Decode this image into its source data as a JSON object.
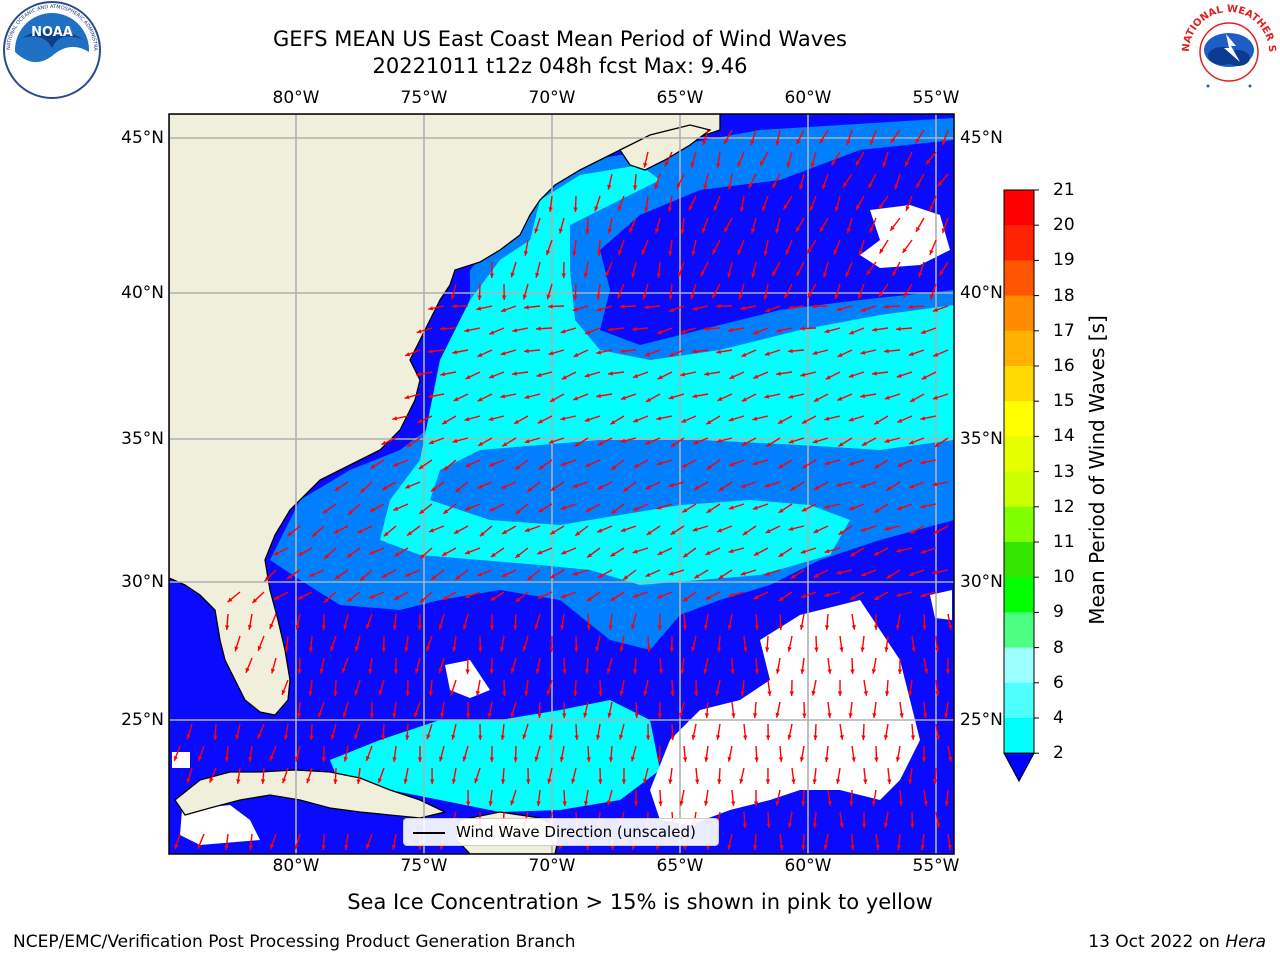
{
  "header": {
    "title_line1": "GEFS MEAN US East Coast Mean Period of Wind Waves",
    "title_line2": "20221011 t12z 048h fcst   Max: 9.46"
  },
  "logos": {
    "left": {
      "name": "NOAA",
      "text": "NOAA",
      "ring_text": "NATIONAL OCEANIC AND ATMOSPHERIC ADMINISTRATION · U.S. DEPARTMENT OF COMMERCE"
    },
    "right": {
      "name": "National Weather Service",
      "ring_text": "NATIONAL WEATHER SERVICE"
    }
  },
  "map": {
    "lon_ticks": [
      "80°W",
      "75°W",
      "70°W",
      "65°W",
      "60°W",
      "55°W"
    ],
    "lat_ticks": [
      "45°N",
      "40°N",
      "35°N",
      "30°N",
      "25°N"
    ],
    "legend_label": "Wind Wave Direction (unscaled)",
    "colors": {
      "land": "#efefdc",
      "coast": "#000000",
      "grid": "#b0b0b0",
      "arrow": "#ff0000",
      "period_2_4": "#0a0aff",
      "period_4_6": "#0080ff",
      "period_6_8": "#00ffff",
      "period_8_9": "#7fffff",
      "no_data": "#ffffff"
    }
  },
  "colorbar": {
    "label": "Mean Period of Wind Waves [s]",
    "ticks": [
      "2",
      "4",
      "6",
      "8",
      "9",
      "10",
      "11",
      "12",
      "13",
      "14",
      "15",
      "16",
      "17",
      "18",
      "19",
      "20",
      "21"
    ],
    "colors": [
      "#0000ff",
      "#0080ff",
      "#00ffff",
      "#4dffff",
      "#9cffff",
      "#4dff80",
      "#00ff00",
      "#33e600",
      "#80ff00",
      "#ccff00",
      "#e6ff00",
      "#ffff00",
      "#ffd900",
      "#ffb000",
      "#ff8c00",
      "#ff5500",
      "#ff2200",
      "#ff0000"
    ]
  },
  "subtitle": "Sea Ice Concentration > 15% is shown in pink to yellow",
  "footer": {
    "left": "NCEP/EMC/Verification Post Processing Product Generation Branch",
    "right_date": "13 Oct 2022 on ",
    "right_machine": "Hera"
  }
}
